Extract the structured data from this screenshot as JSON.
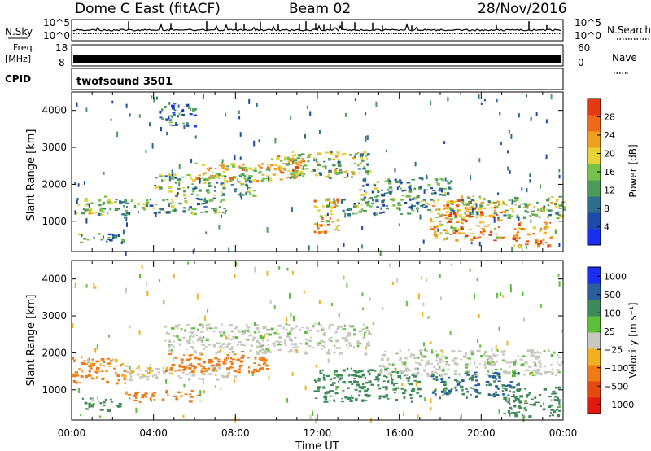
{
  "header": {
    "station": "Dome C East (fitACF)",
    "beam": "Beam 02",
    "date": "28/Nov/2016"
  },
  "strips": {
    "nsky_label": "N.Sky",
    "nsearch_label": "N.Search",
    "freq_label_top": "Freq.",
    "freq_label_unit": "[MHz]",
    "nave_label": "Nave",
    "cpid_label": "CPID",
    "cpid_value": "twofsound 3501",
    "nsky_ticks": [
      "10^5",
      "10^0"
    ],
    "nsearch_ticks": [
      "10^5",
      "10^0"
    ],
    "freq_ticks": [
      "18",
      "8"
    ],
    "nave_ticks": [
      "60",
      "0"
    ]
  },
  "chart_data": [
    {
      "type": "heatmap",
      "title": "",
      "xlabel": "",
      "ylabel": "Slant Range [km]",
      "xlim": [
        "00:00",
        "24:00"
      ],
      "ylim": [
        180,
        4500
      ],
      "y_ticks": [
        "1000",
        "2000",
        "3000",
        "4000"
      ],
      "colorbar": {
        "label": "Power [dB]",
        "ticks": [
          "4",
          "8",
          "12",
          "16",
          "20",
          "24",
          "28"
        ],
        "range": [
          0,
          30
        ],
        "colors": [
          "#1a2ef0",
          "#1c4aa8",
          "#2f6e8c",
          "#4e9a5a",
          "#77c04a",
          "#e6d236",
          "#f0a020",
          "#ee6a18",
          "#e23a12"
        ]
      },
      "echo_regions": [
        {
          "t0": 0.0,
          "t1": 2.6,
          "r0": 1200,
          "r1": 1700,
          "p": 14
        },
        {
          "t0": 0.3,
          "t1": 2.5,
          "r0": 450,
          "r1": 700,
          "p": 10
        },
        {
          "t0": 2.5,
          "t1": 7.5,
          "r0": 1200,
          "r1": 1650,
          "p": 12
        },
        {
          "t0": 4.0,
          "t1": 9.0,
          "r0": 1700,
          "r1": 2300,
          "p": 13
        },
        {
          "t0": 6.0,
          "t1": 11.0,
          "r0": 2100,
          "r1": 2600,
          "p": 18
        },
        {
          "t0": 9.5,
          "t1": 11.5,
          "r0": 2300,
          "r1": 2800,
          "p": 22
        },
        {
          "t0": 10.5,
          "t1": 14.5,
          "r0": 2200,
          "r1": 2900,
          "p": 14
        },
        {
          "t0": 11.8,
          "t1": 13.0,
          "r0": 700,
          "r1": 1700,
          "p": 20
        },
        {
          "t0": 13.0,
          "t1": 17.5,
          "r0": 1200,
          "r1": 1700,
          "p": 12
        },
        {
          "t0": 14.0,
          "t1": 18.5,
          "r0": 1700,
          "r1": 2200,
          "p": 10
        },
        {
          "t0": 17.5,
          "t1": 21.0,
          "r0": 500,
          "r1": 1600,
          "p": 22
        },
        {
          "t0": 18.0,
          "t1": 24.0,
          "r0": 1100,
          "r1": 1700,
          "p": 16
        },
        {
          "t0": 21.5,
          "t1": 23.5,
          "r0": 300,
          "r1": 1000,
          "p": 24
        },
        {
          "t0": 4.3,
          "t1": 6.0,
          "r0": 3600,
          "r1": 4200,
          "p": 8
        }
      ]
    },
    {
      "type": "heatmap",
      "title": "",
      "xlabel": "Time UT",
      "ylabel": "Slant Range [km]",
      "xlim": [
        "00:00",
        "24:00"
      ],
      "ylim": [
        180,
        4500
      ],
      "x_ticks": [
        "00:00",
        "04:00",
        "08:00",
        "12:00",
        "16:00",
        "20:00",
        "00:00"
      ],
      "y_ticks": [
        "1000",
        "2000",
        "3000",
        "4000"
      ],
      "colorbar": {
        "label": "Velocity [m s⁻¹]",
        "ticks": [
          "1000",
          "500",
          "100",
          "25",
          "−25",
          "−100",
          "−500",
          "−1000"
        ],
        "range": [
          -1000,
          1000
        ],
        "colors": [
          "#1a2ef0",
          "#2b5e9e",
          "#3f8a5a",
          "#5cc03a",
          "#c8c8c0",
          "#f0b020",
          "#ee7a18",
          "#e24a12",
          "#e01a10"
        ]
      },
      "echo_regions": [
        {
          "t0": 0.0,
          "t1": 2.6,
          "r0": 1200,
          "r1": 1900,
          "v": -150
        },
        {
          "t0": 0.3,
          "t1": 2.5,
          "r0": 450,
          "r1": 800,
          "v": 200
        },
        {
          "t0": 2.5,
          "t1": 6.5,
          "r0": 700,
          "r1": 1000,
          "v": -200
        },
        {
          "t0": 2.5,
          "t1": 8.0,
          "r0": 1300,
          "r1": 1700,
          "v": -10
        },
        {
          "t0": 4.5,
          "t1": 9.5,
          "r0": 1500,
          "r1": 2000,
          "v": -250
        },
        {
          "t0": 4.5,
          "t1": 14.5,
          "r0": 2000,
          "r1": 2800,
          "v": 5
        },
        {
          "t0": 11.8,
          "t1": 17.0,
          "r0": 700,
          "r1": 1600,
          "v": 300
        },
        {
          "t0": 15.0,
          "t1": 24.0,
          "r0": 1400,
          "r1": 2100,
          "v": 10
        },
        {
          "t0": 17.5,
          "t1": 22.0,
          "r0": 800,
          "r1": 1500,
          "v": 500
        },
        {
          "t0": 21.0,
          "t1": 23.8,
          "r0": 300,
          "r1": 1100,
          "v": 250
        }
      ]
    }
  ]
}
